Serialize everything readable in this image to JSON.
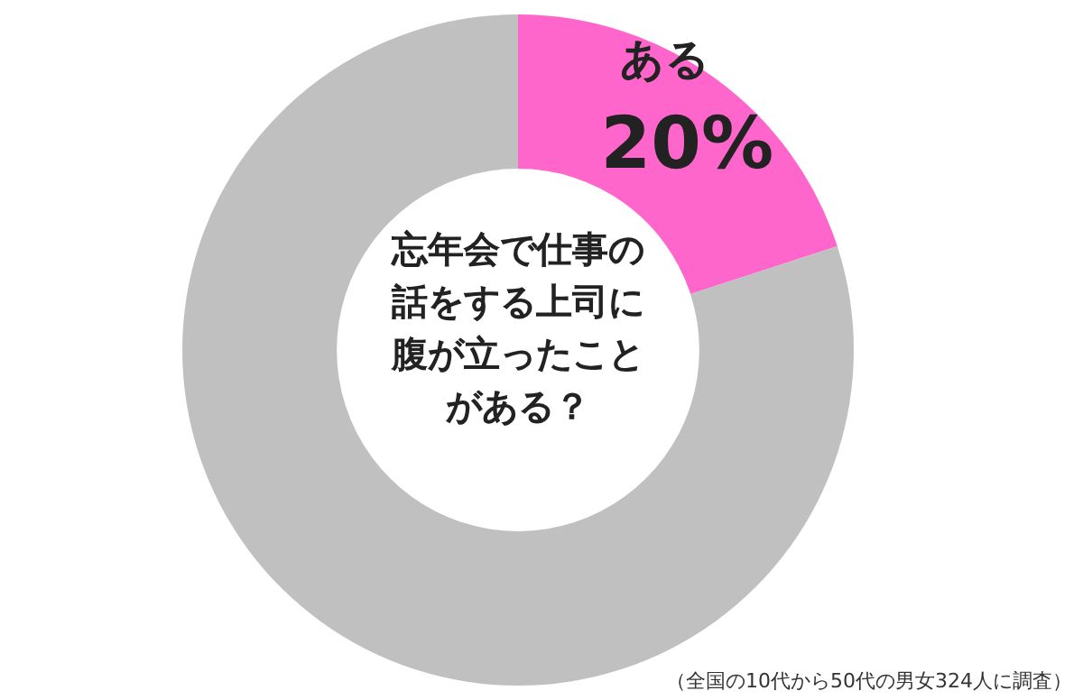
{
  "chart_data": {
    "type": "donut",
    "title": "忘年会で仕事の話をする上司に腹が立ったことがある？",
    "categories": [
      "ある",
      null
    ],
    "values": [
      20,
      80
    ],
    "colors": [
      "#ff66cc",
      "#c0c0c0"
    ],
    "value_labels": [
      "20%",
      null
    ],
    "legend": false,
    "annotations": [
      "（全国の10代から50代の男女324人に調査）"
    ]
  }
}
